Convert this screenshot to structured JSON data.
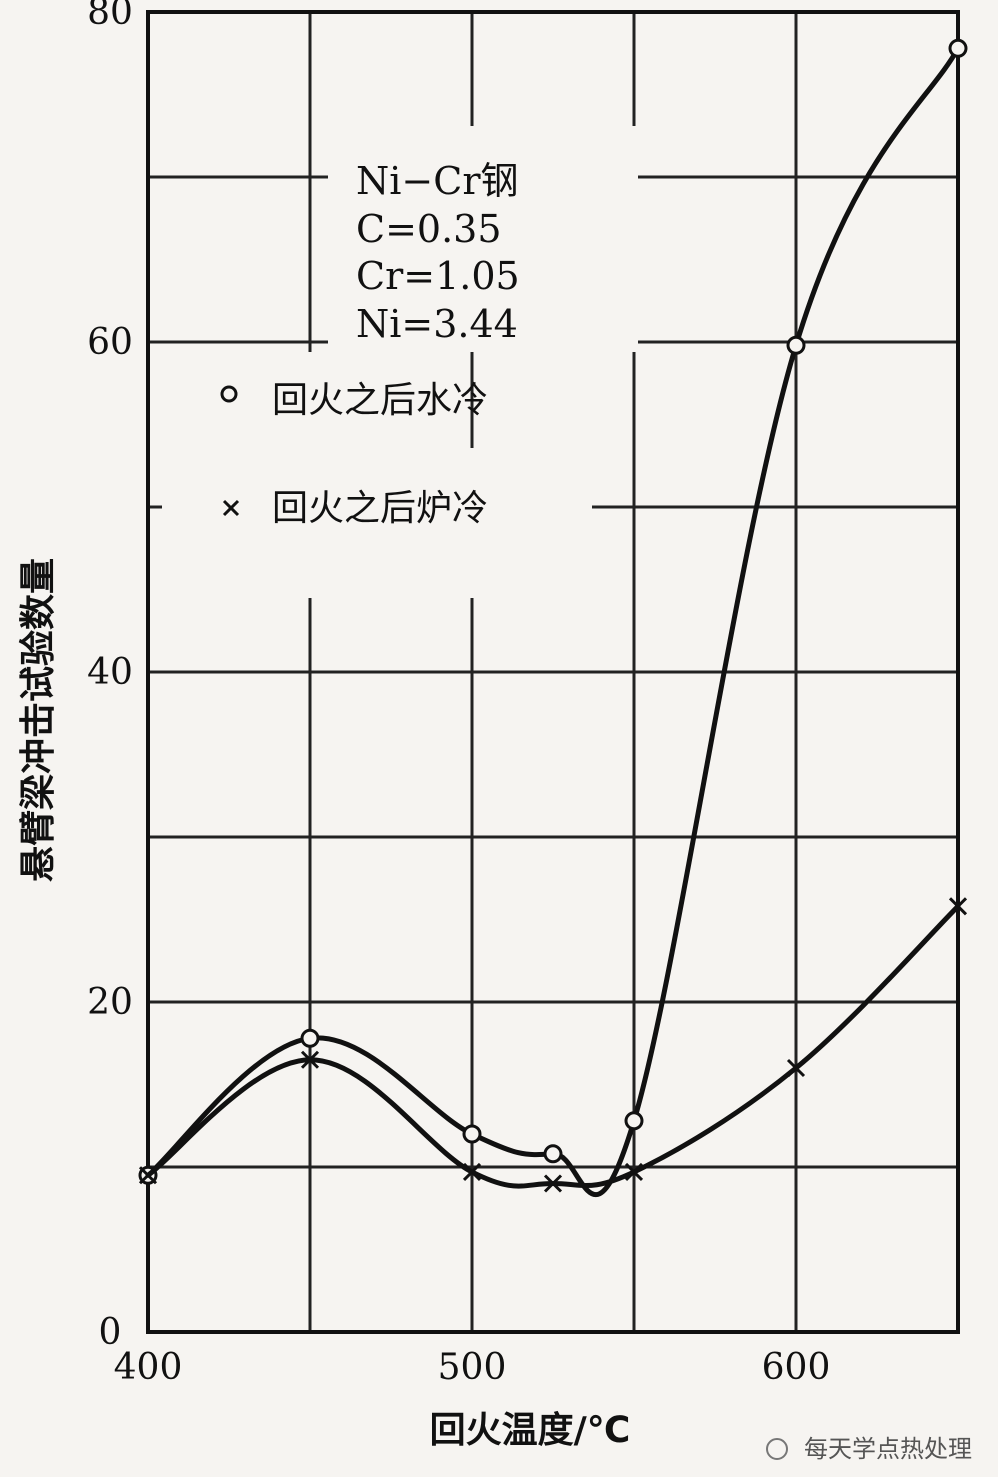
{
  "chart_data": {
    "type": "line",
    "title": "",
    "xlabel": "回火温度/℃",
    "ylabel": "悬臂梁冲击试验数量",
    "xlim": [
      400,
      650
    ],
    "ylim": [
      0,
      80
    ],
    "x_ticks": [
      "400",
      "500",
      "600"
    ],
    "y_ticks": [
      "0",
      "20",
      "40",
      "60",
      "80"
    ],
    "grid": true,
    "annotation": [
      "Ni−Cr钢",
      "C=0.35",
      "Cr=1.05",
      "Ni=3.44"
    ],
    "series": [
      {
        "name": "回火之后水冷",
        "marker": "circle",
        "x": [
          400,
          450,
          500,
          525,
          550,
          600,
          650
        ],
        "y": [
          9.5,
          17.8,
          12.0,
          10.8,
          12.8,
          59.8,
          77.8
        ]
      },
      {
        "name": "回火之后炉冷",
        "marker": "x",
        "x": [
          400,
          450,
          500,
          525,
          550,
          600,
          650
        ],
        "y": [
          9.5,
          16.5,
          9.7,
          9.0,
          9.7,
          16.0,
          25.8
        ]
      }
    ],
    "legend": {
      "placement": "upper-left"
    },
    "watermark": "每天学点热处理"
  }
}
